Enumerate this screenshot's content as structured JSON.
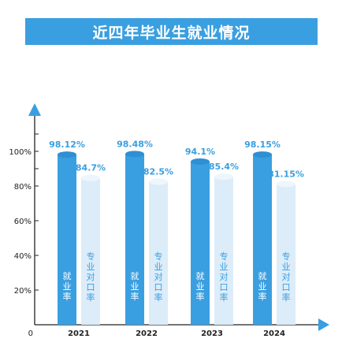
{
  "title": "近四年毕业生就业情况",
  "chart_data": {
    "type": "bar",
    "title": "近四年毕业生就业情况",
    "categories": [
      "2021",
      "2022",
      "2023",
      "2024"
    ],
    "origin_label": "0",
    "y_ticks": [
      "20%",
      "40%",
      "60%",
      "80%",
      "100%"
    ],
    "ylim": [
      0,
      110
    ],
    "grid": false,
    "series": [
      {
        "name": "就业率",
        "values": [
          98.12,
          98.48,
          94.1,
          98.15
        ],
        "labels": [
          "98.12%",
          "98.48%",
          "94.1%",
          "98.15%"
        ],
        "color": "#3a9fe0"
      },
      {
        "name": "专业对口率",
        "values": [
          84.7,
          82.5,
          85.4,
          81.15
        ],
        "labels": [
          "84.7%",
          "82.5%",
          "85.4%",
          "81.15%"
        ],
        "color": "#dcecf9"
      }
    ]
  },
  "colors": {
    "accent": "#3a9fe0",
    "light": "#dcecf9",
    "axis": "#222222"
  }
}
